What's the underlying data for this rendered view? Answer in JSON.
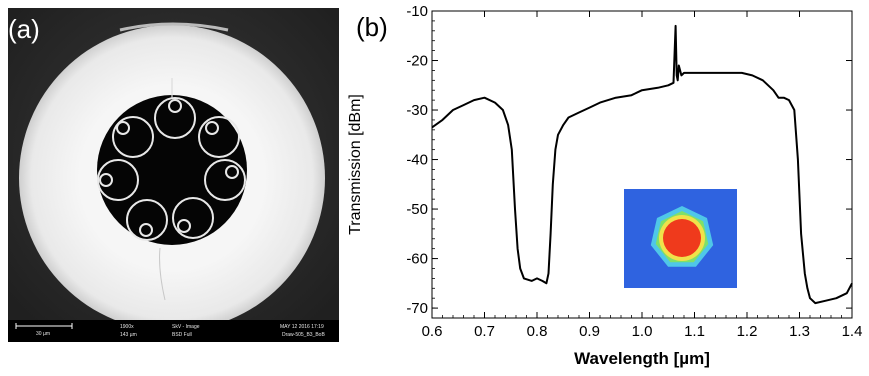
{
  "panel_a": {
    "label": "(a)",
    "scale_bar": "30 µm",
    "magnification": "1900x",
    "hfw": "143 µm",
    "mode": "SkV - Image",
    "detector": "BSD Full",
    "date": "MAY 12 2016 17:19",
    "sample": "Draw-505_B3_BoB"
  },
  "panel_b": {
    "label": "(b)"
  },
  "chart_data": {
    "type": "line",
    "xlabel": "Wavelength [µm]",
    "ylabel": "Transmission [dBm]",
    "xlim": [
      0.6,
      1.4
    ],
    "ylim": [
      -72,
      -10
    ],
    "xticks": [
      "0.6",
      "0.7",
      "0.8",
      "0.9",
      "1.0",
      "1.1",
      "1.2",
      "1.3",
      "1.4"
    ],
    "xtick_values": [
      0.6,
      0.7,
      0.8,
      0.9,
      1.0,
      1.1,
      1.2,
      1.3,
      1.4
    ],
    "yticks": [
      "-10",
      "-20",
      "-30",
      "-40",
      "-50",
      "-60",
      "-70"
    ],
    "ytick_values": [
      -10,
      -20,
      -30,
      -40,
      -50,
      -60,
      -70
    ],
    "grid": false,
    "series": [
      {
        "color": "#000000",
        "x": [
          0.6,
          0.62,
          0.64,
          0.66,
          0.68,
          0.7,
          0.72,
          0.735,
          0.745,
          0.752,
          0.758,
          0.763,
          0.768,
          0.775,
          0.79,
          0.8,
          0.81,
          0.818,
          0.822,
          0.826,
          0.83,
          0.835,
          0.84,
          0.85,
          0.86,
          0.88,
          0.9,
          0.92,
          0.95,
          0.98,
          1.0,
          1.03,
          1.05,
          1.06,
          1.064,
          1.066,
          1.068,
          1.07,
          1.075,
          1.08,
          1.1,
          1.13,
          1.16,
          1.19,
          1.21,
          1.23,
          1.25,
          1.26,
          1.27,
          1.28,
          1.29,
          1.297,
          1.303,
          1.31,
          1.315,
          1.32,
          1.33,
          1.35,
          1.37,
          1.39,
          1.4
        ],
        "y": [
          -33.5,
          -32,
          -30,
          -29,
          -28,
          -27.5,
          -28.5,
          -30,
          -33,
          -38,
          -50,
          -58,
          -62,
          -64,
          -64.5,
          -64,
          -64.5,
          -65,
          -63,
          -55,
          -45,
          -38,
          -35,
          -33,
          -31.5,
          -30.5,
          -29.5,
          -28.5,
          -27.5,
          -27,
          -26,
          -25.5,
          -25,
          -24.5,
          -13,
          -23,
          -24,
          -21,
          -23,
          -22.5,
          -22.5,
          -22.5,
          -22.5,
          -22.5,
          -23,
          -24,
          -26,
          -27.5,
          -27.5,
          -28,
          -30,
          -40,
          -55,
          -63,
          -66,
          -68,
          -69,
          -68.5,
          -68,
          -67,
          -65
        ]
      }
    ]
  }
}
